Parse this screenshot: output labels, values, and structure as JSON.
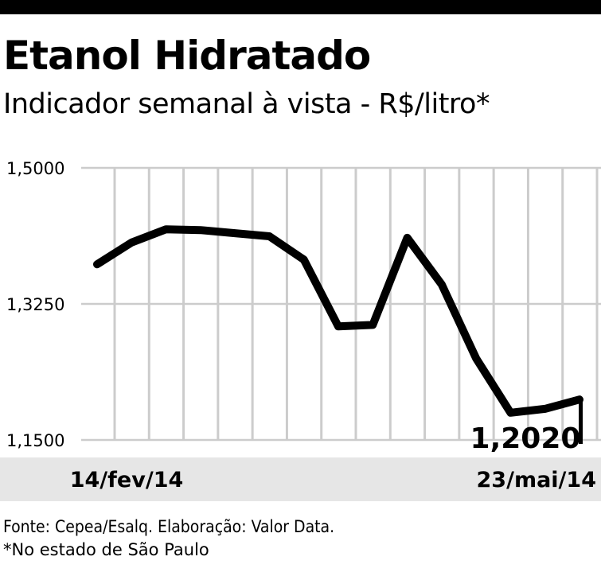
{
  "header": {
    "title": "Etanol Hidratado",
    "subtitle": "Indicador semanal à vista - R$/litro*"
  },
  "footer": {
    "source": "Fonte: Cepea/Esalq. Elaboração: Valor Data.",
    "note": "*No estado de São Paulo"
  },
  "colors": {
    "line": "#000000",
    "grid": "#cccccc",
    "band": "#e6e6e6",
    "bar": "#000000"
  },
  "chart_data": {
    "type": "line",
    "title": "Etanol Hidratado",
    "subtitle": "Indicador semanal à vista - R$/litro*",
    "ylim": [
      1.15,
      1.5
    ],
    "y_ticks": [
      "1,5000",
      "1,3250",
      "1,1500"
    ],
    "y_tick_values": [
      1.5,
      1.325,
      1.15
    ],
    "x_tick_labels": [
      "14/fev/14",
      "23/mai/14"
    ],
    "grid": "vertical",
    "last_value_label": "1,2020",
    "series": [
      {
        "values": [
          1.376,
          1.404,
          1.421,
          1.42,
          1.416,
          1.412,
          1.382,
          1.296,
          1.298,
          1.41,
          1.35,
          1.255,
          1.185,
          1.19,
          1.202
        ]
      }
    ]
  }
}
